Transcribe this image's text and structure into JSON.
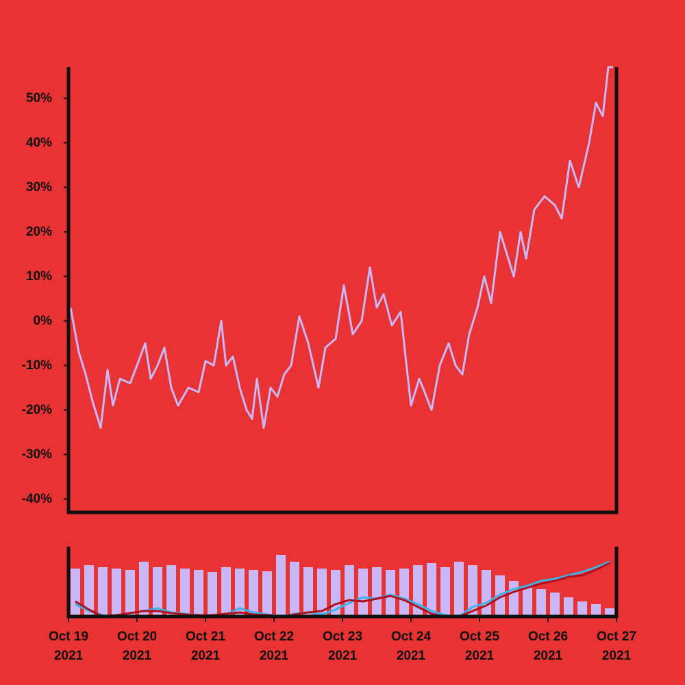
{
  "chart_data": [
    {
      "type": "line",
      "x": [
        19.03,
        19.15,
        19.25,
        19.35,
        19.47,
        19.57,
        19.65,
        19.75,
        19.9,
        20.0,
        20.12,
        20.2,
        20.3,
        20.4,
        20.5,
        20.6,
        20.75,
        20.9,
        21.0,
        21.12,
        21.23,
        21.3,
        21.4,
        21.5,
        21.6,
        21.68,
        21.75,
        21.85,
        21.95,
        22.05,
        22.15,
        22.25,
        22.37,
        22.5,
        22.65,
        22.75,
        22.9,
        23.02,
        23.15,
        23.28,
        23.4,
        23.5,
        23.6,
        23.72,
        23.85,
        23.92,
        24.0,
        24.12,
        24.2,
        24.3,
        24.42,
        24.55,
        24.65,
        24.75,
        24.85,
        24.97,
        25.07,
        25.17,
        25.3,
        25.4,
        25.5,
        25.6,
        25.68,
        25.8,
        25.95,
        26.1,
        26.2,
        26.32,
        26.45,
        26.6,
        26.7,
        26.8,
        26.88,
        26.95
      ],
      "series": [
        {
          "color": "#c9b8f5",
          "values": [
            3,
            -7,
            -12,
            -18,
            -24,
            -11,
            -19,
            -13,
            -14,
            -10,
            -5,
            -13,
            -10,
            -6,
            -15,
            -19,
            -15,
            -16,
            -9,
            -10,
            0,
            -10,
            -8,
            -15,
            -20,
            -22,
            -13,
            -24,
            -15,
            -17,
            -12,
            -10,
            1,
            -5,
            -15,
            -6,
            -4,
            8,
            -3,
            0,
            12,
            3,
            6,
            -1,
            2,
            -8,
            -19,
            -13,
            -16,
            -20,
            -10,
            -5,
            -10,
            -12,
            -3,
            3,
            10,
            4,
            20,
            15,
            10,
            20,
            14,
            25,
            28,
            26,
            23,
            36,
            30,
            40,
            49,
            46,
            57,
            57
          ]
        }
      ],
      "xlim": [
        19,
        27
      ],
      "ylim": [
        -43,
        57
      ],
      "yticks": [
        {
          "value": -40,
          "label": "-40%"
        },
        {
          "value": -30,
          "label": "-30%"
        },
        {
          "value": -20,
          "label": "-20%"
        },
        {
          "value": -10,
          "label": "-10%"
        },
        {
          "value": 0,
          "label": "0%"
        },
        {
          "value": 10,
          "label": "10%"
        },
        {
          "value": 20,
          "label": "20%"
        },
        {
          "value": 30,
          "label": "30%"
        },
        {
          "value": 40,
          "label": "40%"
        },
        {
          "value": 50,
          "label": "50%"
        }
      ]
    },
    {
      "type": "bar",
      "x": [
        19.1,
        19.3,
        19.5,
        19.7,
        19.9,
        20.1,
        20.3,
        20.5,
        20.7,
        20.9,
        21.1,
        21.3,
        21.5,
        21.7,
        21.9,
        22.1,
        22.3,
        22.5,
        22.7,
        22.9,
        23.1,
        23.3,
        23.5,
        23.7,
        23.9,
        24.1,
        24.3,
        24.5,
        24.7,
        24.9,
        25.1,
        25.3,
        25.5,
        25.7,
        25.9,
        26.1,
        26.3,
        26.5,
        26.7,
        26.9
      ],
      "values": [
        70,
        75,
        72,
        70,
        68,
        80,
        72,
        75,
        70,
        68,
        65,
        72,
        70,
        68,
        66,
        90,
        80,
        72,
        70,
        68,
        75,
        70,
        72,
        68,
        70,
        75,
        78,
        72,
        80,
        75,
        68,
        60,
        52,
        45,
        40,
        35,
        28,
        22,
        18,
        12
      ],
      "color": "#c9b8f5",
      "series": [
        {
          "color": "#3ab3e8",
          "values": [
            18,
            8,
            2,
            0,
            5,
            8,
            12,
            6,
            4,
            2,
            0,
            3,
            12,
            6,
            3,
            0,
            4,
            6,
            3,
            10,
            20,
            28,
            26,
            32,
            26,
            18,
            8,
            2,
            0,
            14,
            20,
            32,
            40,
            45,
            52,
            55,
            60,
            65,
            72,
            80
          ]
        },
        {
          "color": "#b01020",
          "values": [
            22,
            10,
            0,
            2,
            5,
            8,
            8,
            5,
            3,
            2,
            2,
            4,
            6,
            3,
            2,
            0,
            3,
            6,
            8,
            18,
            24,
            22,
            26,
            30,
            24,
            14,
            4,
            0,
            0,
            8,
            16,
            28,
            36,
            42,
            48,
            52,
            58,
            60,
            68,
            78
          ]
        }
      ],
      "xlim": [
        19,
        27
      ],
      "ylim": [
        0,
        100
      ],
      "xticks": [
        {
          "value": 19,
          "label": "Oct 19\n2021"
        },
        {
          "value": 20,
          "label": "Oct 20\n2021"
        },
        {
          "value": 21,
          "label": "Oct 21\n2021"
        },
        {
          "value": 22,
          "label": "Oct 22\n2021"
        },
        {
          "value": 23,
          "label": "Oct 23\n2021"
        },
        {
          "value": 24,
          "label": "Oct 24\n2021"
        },
        {
          "value": 25,
          "label": "Oct 25\n2021"
        },
        {
          "value": 26,
          "label": "Oct 26\n2021"
        },
        {
          "value": 27,
          "label": "Oct 27\n2021"
        }
      ]
    }
  ]
}
